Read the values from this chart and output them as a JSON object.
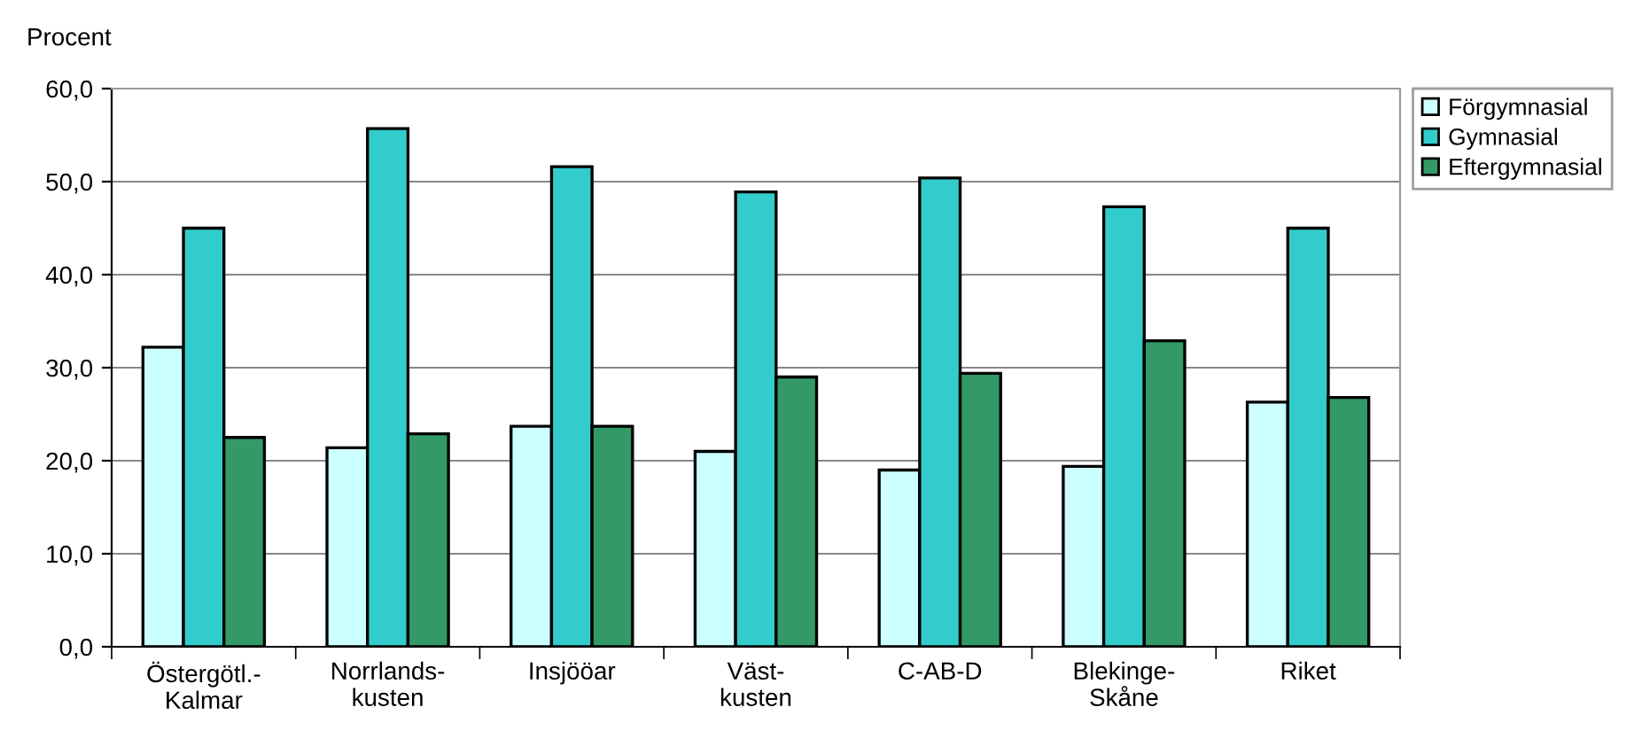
{
  "chart_data": {
    "type": "bar",
    "ylabel": "Procent",
    "categories": [
      "Östergötl.-\nKalmar",
      "Norrlands-\nkusten",
      "Insjööar",
      "Väst-\nkusten",
      "C-AB-D",
      "Blekinge-\nSkåne",
      "Riket"
    ],
    "series": [
      {
        "name": "Förgymnasial",
        "color": "#ccffff",
        "values": [
          32.2,
          21.4,
          23.7,
          21.0,
          19.0,
          19.4,
          26.3
        ]
      },
      {
        "name": "Gymnasial",
        "color": "#33cccc",
        "values": [
          45.0,
          55.7,
          51.6,
          48.9,
          50.4,
          47.3,
          45.0
        ]
      },
      {
        "name": "Eftergymnasial",
        "color": "#339966",
        "values": [
          22.5,
          22.9,
          23.7,
          29.0,
          29.4,
          32.9,
          26.8
        ]
      }
    ],
    "ylim": [
      0,
      60
    ],
    "yticks": [
      {
        "value": 0,
        "label": "0,0"
      },
      {
        "value": 10,
        "label": "10,0"
      },
      {
        "value": 20,
        "label": "20,0"
      },
      {
        "value": 30,
        "label": "30,0"
      },
      {
        "value": 40,
        "label": "40,0"
      },
      {
        "value": 50,
        "label": "50,0"
      },
      {
        "value": 60,
        "label": "60,0"
      }
    ],
    "grid": "y",
    "legend": "right"
  }
}
